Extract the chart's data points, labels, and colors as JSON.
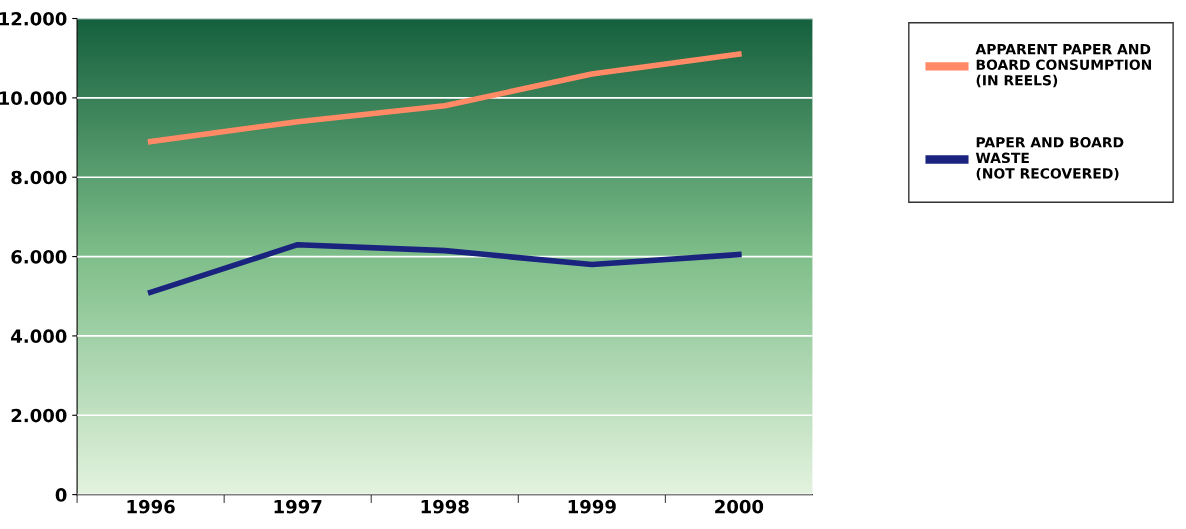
{
  "chart_data": {
    "type": "line",
    "categories": [
      "1996",
      "1997",
      "1998",
      "1999",
      "2000"
    ],
    "series": [
      {
        "name": "APPARENT PAPER AND\nBOARD CONSUMPTION\n(IN REELS)",
        "color": "#ff8a65",
        "values": [
          8900,
          9400,
          9800,
          10600,
          11100
        ]
      },
      {
        "name": "PAPER AND BOARD\nWASTE\n(NOT RECOVERED)",
        "color": "#1a237e",
        "values": [
          5100,
          6300,
          6150,
          5800,
          6050
        ]
      }
    ],
    "ylim": [
      0,
      12000
    ],
    "yticks": [
      {
        "value": 0,
        "label": "0"
      },
      {
        "value": 2000,
        "label": "2.000"
      },
      {
        "value": 4000,
        "label": "4.000"
      },
      {
        "value": 6000,
        "label": "6.000"
      },
      {
        "value": 8000,
        "label": "8.000"
      },
      {
        "value": 10000,
        "label": "10.000"
      },
      {
        "value": 12000,
        "label": "12.000"
      }
    ],
    "grid": "y",
    "legend": "right",
    "marker": "none",
    "line_style": "solid"
  }
}
